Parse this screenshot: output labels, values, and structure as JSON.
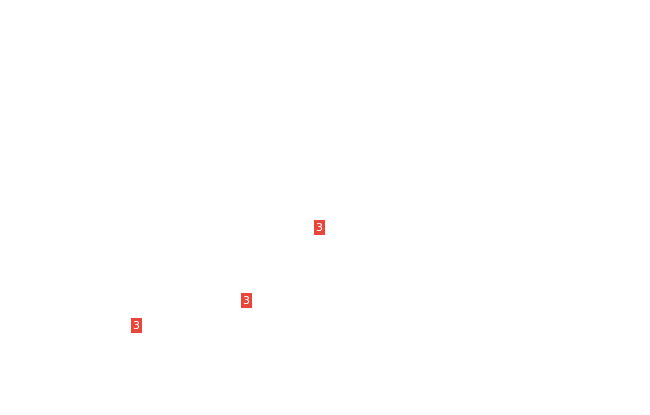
{
  "badges": [
    {
      "label": "3",
      "color": "#e8463a"
    },
    {
      "label": "3",
      "color": "#e8463a"
    },
    {
      "label": "3",
      "color": "#e8463a"
    }
  ]
}
